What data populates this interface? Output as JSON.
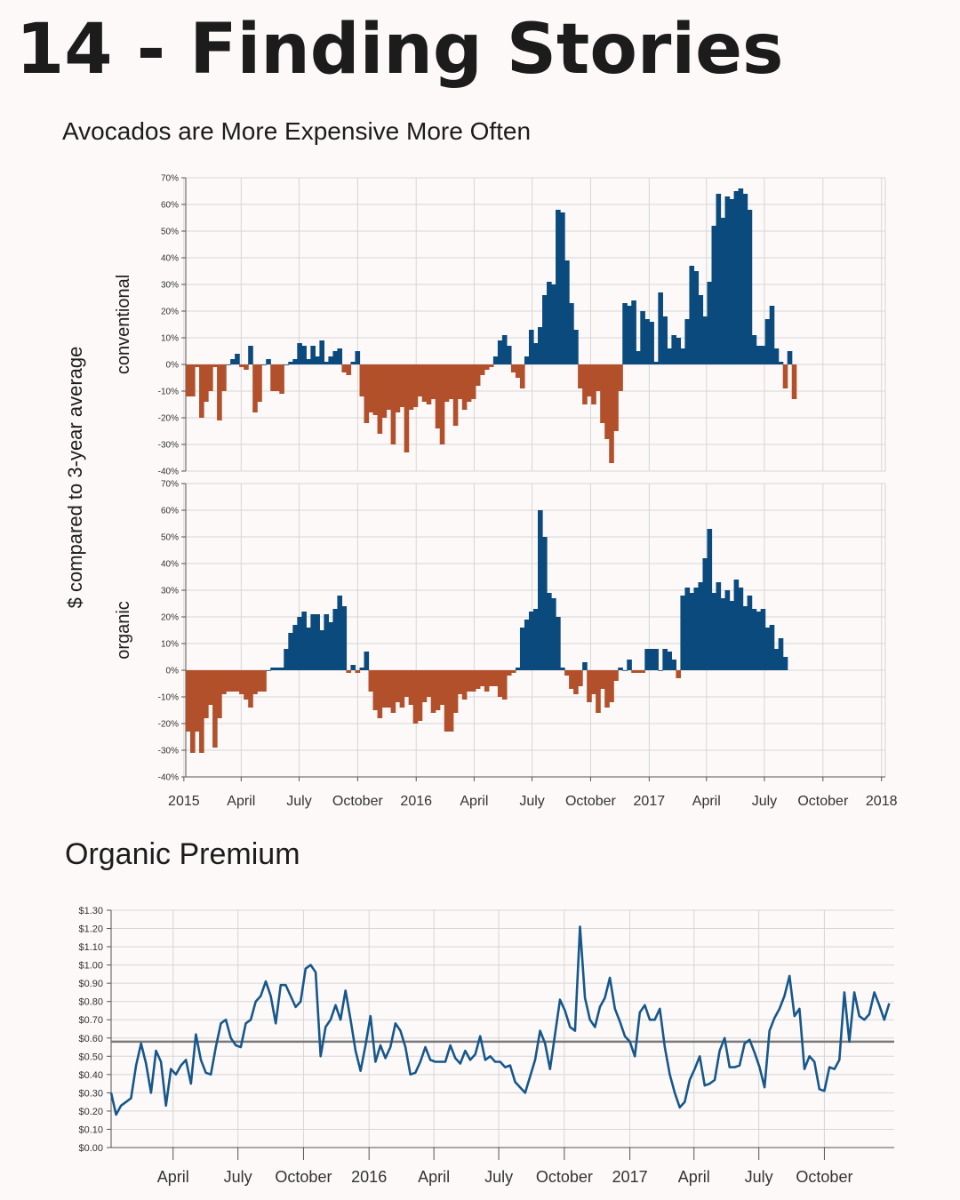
{
  "page": {
    "title": "14 - Finding Stories"
  },
  "colors": {
    "positive": "#0b4a7d",
    "negative": "#b2502b",
    "line": "#17578b",
    "average_line": "#7a7a7a",
    "grid": "#d6d6d6"
  },
  "chart_data": [
    {
      "type": "bar",
      "title": "Avocados are More Expensive More Often",
      "ylabel": "$ compared to 3-year average",
      "xlim": [
        "2015-01-04",
        "2018-01-07"
      ],
      "ylim": [
        -40,
        70
      ],
      "y_unit": "%",
      "grid": true,
      "x_tick_labels": [
        "2015",
        "April",
        "July",
        "October",
        "2016",
        "April",
        "July",
        "October",
        "2017",
        "April",
        "July",
        "October",
        "2018"
      ],
      "y_tick_labels": [
        "70%",
        "60%",
        "50%",
        "40%",
        "30%",
        "20%",
        "10%",
        "0%",
        "-10%",
        "-20%",
        "-30%",
        "-40%"
      ],
      "series": [
        {
          "name": "conventional",
          "start": "2015-01-04",
          "interval_days": 7,
          "values": [
            -12,
            -12,
            -1,
            -20,
            -14,
            -10,
            -1,
            -21,
            -10,
            0,
            2,
            4,
            -1,
            -2,
            7,
            -18,
            -14,
            0,
            2,
            -10,
            -10,
            -11,
            0,
            1,
            2,
            8,
            7,
            2,
            7,
            3,
            9,
            1,
            3,
            5,
            6,
            -3,
            -4,
            1,
            5,
            -12,
            -22,
            -18,
            -19,
            -26,
            -20,
            -17,
            -30,
            -18,
            -16,
            -33,
            -17,
            -16,
            -12,
            -14,
            -15,
            -13,
            -24,
            -30,
            -14,
            -13,
            -23,
            -13,
            -17,
            -14,
            -13,
            -8,
            -4,
            -2,
            -1,
            3,
            9,
            11,
            7,
            -3,
            -5,
            -9,
            3,
            13,
            8,
            14,
            26,
            31,
            30,
            58,
            57,
            39,
            23,
            13,
            -9,
            -15,
            -12,
            -15,
            -10,
            -22,
            -28,
            -37,
            -25,
            -10,
            23,
            22,
            24,
            5,
            20,
            17,
            16,
            1,
            27,
            18,
            6,
            11,
            10,
            6,
            17,
            37,
            35,
            26,
            18,
            31,
            52,
            64,
            55,
            63,
            62,
            65,
            66,
            64,
            58,
            11,
            7,
            7,
            17,
            22,
            6,
            1,
            -9,
            5,
            -13
          ]
        },
        {
          "name": "organic",
          "start": "2015-01-04",
          "interval_days": 7,
          "values": [
            -23,
            -31,
            -23,
            -31,
            -18,
            -13,
            -29,
            -18,
            -9,
            -8,
            -8,
            -8,
            -9,
            -11,
            -14,
            -9,
            -8,
            -8,
            0,
            1,
            1,
            1,
            8,
            14,
            17,
            20,
            22,
            16,
            21,
            21,
            15,
            21,
            18,
            23,
            28,
            24,
            -1,
            2,
            -1,
            1,
            7,
            -8,
            -15,
            -18,
            -14,
            -14,
            -16,
            -12,
            -14,
            -10,
            -13,
            -20,
            -19,
            -12,
            -10,
            -16,
            -15,
            -13,
            -23,
            -23,
            -16,
            -9,
            -11,
            -8,
            -8,
            -7,
            -6,
            -8,
            -6,
            -6,
            -10,
            -11,
            -2,
            -1,
            1,
            16,
            19,
            22,
            23,
            60,
            50,
            29,
            27,
            20,
            1,
            -2,
            -7,
            -9,
            -6,
            3,
            -12,
            -9,
            -16,
            -7,
            -14,
            -12,
            -4,
            1,
            0,
            4,
            -1,
            -1,
            -1,
            8,
            8,
            8,
            0,
            8,
            7,
            4,
            -3,
            28,
            31,
            29,
            31,
            33,
            42,
            53,
            29,
            33,
            27,
            30,
            26,
            34,
            31,
            24,
            28,
            23,
            22,
            23,
            16,
            17,
            8,
            12,
            5
          ]
        }
      ]
    },
    {
      "type": "line",
      "title": "Organic Premium",
      "xlim": [
        "2015-01-04",
        "2018-01-07"
      ],
      "ylim": [
        0,
        1.3
      ],
      "grid": true,
      "x_tick_labels": [
        "April",
        "July",
        "October",
        "2016",
        "April",
        "July",
        "October",
        "2017",
        "April",
        "July",
        "October"
      ],
      "y_tick_labels": [
        "$1.30",
        "$1.20",
        "$1.10",
        "$1.00",
        "$0.90",
        "$0.80",
        "$0.70",
        "$0.60",
        "$0.50",
        "$0.40",
        "$0.30",
        "$0.20",
        "$0.10",
        "$0.00"
      ],
      "average": 0.58,
      "series": [
        {
          "name": "premium",
          "start": "2015-01-04",
          "interval_days": 7,
          "values": [
            0.3,
            0.18,
            0.23,
            0.25,
            0.27,
            0.45,
            0.57,
            0.46,
            0.3,
            0.53,
            0.47,
            0.23,
            0.43,
            0.4,
            0.45,
            0.48,
            0.35,
            0.62,
            0.48,
            0.41,
            0.4,
            0.55,
            0.68,
            0.7,
            0.6,
            0.56,
            0.55,
            0.68,
            0.7,
            0.8,
            0.83,
            0.91,
            0.83,
            0.68,
            0.89,
            0.89,
            0.83,
            0.77,
            0.8,
            0.98,
            1.0,
            0.96,
            0.5,
            0.66,
            0.7,
            0.78,
            0.7,
            0.86,
            0.7,
            0.53,
            0.42,
            0.56,
            0.72,
            0.47,
            0.56,
            0.49,
            0.55,
            0.68,
            0.64,
            0.55,
            0.4,
            0.41,
            0.47,
            0.55,
            0.48,
            0.47,
            0.47,
            0.47,
            0.56,
            0.49,
            0.46,
            0.53,
            0.48,
            0.51,
            0.61,
            0.48,
            0.5,
            0.47,
            0.47,
            0.44,
            0.45,
            0.36,
            0.33,
            0.3,
            0.39,
            0.48,
            0.64,
            0.57,
            0.43,
            0.62,
            0.81,
            0.75,
            0.66,
            0.64,
            1.21,
            0.82,
            0.7,
            0.66,
            0.77,
            0.82,
            0.93,
            0.76,
            0.69,
            0.61,
            0.58,
            0.5,
            0.74,
            0.78,
            0.7,
            0.7,
            0.76,
            0.55,
            0.4,
            0.3,
            0.22,
            0.25,
            0.37,
            0.43,
            0.5,
            0.34,
            0.35,
            0.37,
            0.53,
            0.6,
            0.44,
            0.44,
            0.45,
            0.57,
            0.59,
            0.52,
            0.44,
            0.33,
            0.64,
            0.71,
            0.76,
            0.83,
            0.94,
            0.72,
            0.76,
            0.43,
            0.5,
            0.47,
            0.32,
            0.31,
            0.44,
            0.43,
            0.48,
            0.85,
            0.58,
            0.85,
            0.72,
            0.7,
            0.73,
            0.85,
            0.78,
            0.7,
            0.79
          ]
        }
      ]
    }
  ]
}
